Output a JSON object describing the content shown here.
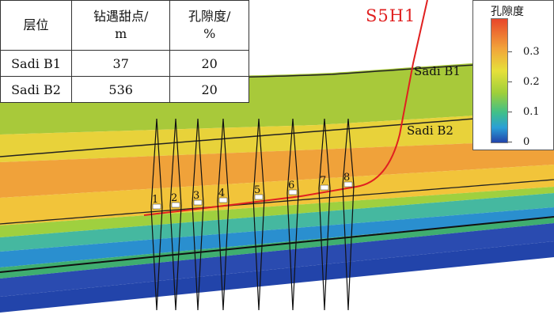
{
  "table": {
    "headers": [
      "层位",
      "钻遇甜点/\nm",
      "孔隙度/\n%"
    ],
    "rows": [
      {
        "layer": "Sadi B1",
        "sweet": "37",
        "porosity": "20"
      },
      {
        "layer": "Sadi B2",
        "sweet": "536",
        "porosity": "20"
      }
    ]
  },
  "well": {
    "name": "S5H1",
    "color": "#e02020"
  },
  "layers": {
    "b1": "Sadi B1",
    "b2": "Sadi B2"
  },
  "points": [
    "1",
    "2",
    "3",
    "4",
    "5",
    "6",
    "7",
    "8"
  ],
  "legend": {
    "title": "孔隙度",
    "ticks": [
      "0",
      "0.1",
      "0.2",
      "0.3"
    ]
  }
}
